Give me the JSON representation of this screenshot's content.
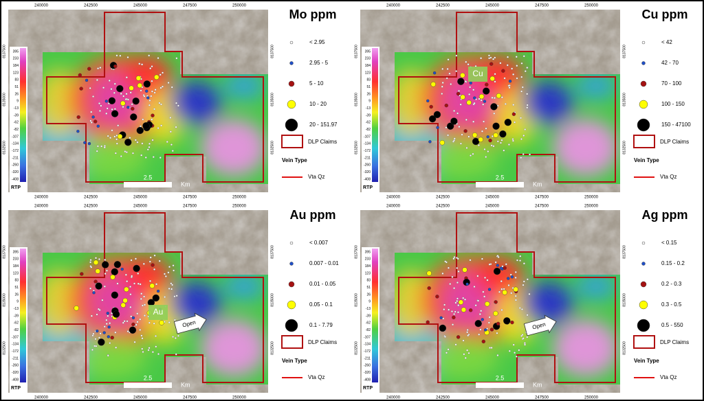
{
  "panels": [
    {
      "title": "Mo ppm",
      "x_ticks": [
        "240000",
        "242500",
        "245000",
        "247500",
        "250000"
      ],
      "y_ticks": [
        "8137500",
        "8135000",
        "8132500"
      ],
      "colorbar": {
        "title": "RTP",
        "labels": [
          "395",
          "233",
          "184",
          "123",
          "83",
          "51",
          "26",
          "9",
          "-13",
          "-39",
          "-62",
          "-82",
          "-107",
          "-134",
          "-172",
          "-211",
          "-260",
          "-320",
          "-408"
        ]
      },
      "scale_bar": [
        "2.5",
        "Km"
      ],
      "legend": {
        "items": [
          {
            "label": "< 2.95",
            "color": "#ffffff"
          },
          {
            "label": "2.95 - 5",
            "color": "#1f4fc8"
          },
          {
            "label": "5 - 10",
            "color": "#a51212"
          },
          {
            "label": "10 - 20",
            "color": "#ffff00"
          },
          {
            "label": "20 - 151.97",
            "color": "#000000"
          }
        ],
        "claims": "DLP Claims",
        "vein_heading": "Vein Type",
        "vein": "Vta Qz"
      },
      "annotations": []
    },
    {
      "title": "Cu ppm",
      "x_ticks": [
        "240000",
        "242500",
        "245000",
        "247500",
        "250000"
      ],
      "y_ticks": [
        "8137500",
        "8135000",
        "8132500"
      ],
      "colorbar": {
        "title": "RTP",
        "labels": [
          "395",
          "233",
          "184",
          "123",
          "83",
          "51",
          "26",
          "9",
          "-13",
          "-39",
          "-62",
          "-82",
          "-107",
          "-134",
          "-172",
          "-211",
          "-260",
          "-320",
          "-408"
        ]
      },
      "scale_bar": [
        "2.5",
        "Km"
      ],
      "legend": {
        "items": [
          {
            "label": "< 42",
            "color": "#ffffff"
          },
          {
            "label": "42 - 70",
            "color": "#1f4fc8"
          },
          {
            "label": "70 - 100",
            "color": "#a51212"
          },
          {
            "label": "100 - 150",
            "color": "#ffff00"
          },
          {
            "label": "150 - 47100",
            "color": "#000000"
          }
        ],
        "claims": "DLP Claims",
        "vein_heading": "Vein Type",
        "vein": "Vta Qz"
      },
      "annotations": [
        "Cu"
      ]
    },
    {
      "title": "Au ppm",
      "x_ticks": [
        "240000",
        "242500",
        "245000",
        "247500",
        "250000"
      ],
      "y_ticks": [
        "8137500",
        "8135000",
        "8132500"
      ],
      "colorbar": {
        "title": "RTP",
        "labels": [
          "395",
          "233",
          "184",
          "123",
          "83",
          "51",
          "26",
          "9",
          "-13",
          "-39",
          "-62",
          "-82",
          "-107",
          "-134",
          "-172",
          "-211",
          "-260",
          "-320",
          "-408"
        ]
      },
      "scale_bar": [
        "2.5",
        "Km"
      ],
      "legend": {
        "items": [
          {
            "label": "< 0.007",
            "color": "#ffffff"
          },
          {
            "label": "0.007 - 0.01",
            "color": "#1f4fc8"
          },
          {
            "label": "0.01 - 0.05",
            "color": "#a51212"
          },
          {
            "label": "0.05 - 0.1",
            "color": "#ffff00"
          },
          {
            "label": "0.1 -  7.79",
            "color": "#000000"
          }
        ],
        "claims": "DLP Claims",
        "vein_heading": "Vein Type",
        "vein": "Vta Qz"
      },
      "annotations": [
        "Au",
        "Open"
      ]
    },
    {
      "title": "Ag ppm",
      "x_ticks": [
        "240000",
        "242500",
        "245000",
        "247500",
        "250000"
      ],
      "y_ticks": [
        "8137500",
        "8135000",
        "8132500"
      ],
      "colorbar": {
        "title": "RTP",
        "labels": [
          "395",
          "233",
          "184",
          "123",
          "83",
          "51",
          "26",
          "9",
          "-13",
          "-39",
          "-62",
          "-82",
          "-107",
          "-134",
          "-172",
          "-211",
          "-260",
          "-320",
          "-408"
        ]
      },
      "scale_bar": [
        "2.5",
        "Km"
      ],
      "legend": {
        "items": [
          {
            "label": "< 0.15",
            "color": "#ffffff"
          },
          {
            "label": "0.15 - 0.2",
            "color": "#1f4fc8"
          },
          {
            "label": "0.2 - 0.3",
            "color": "#a51212"
          },
          {
            "label": "0.3 - 0.5",
            "color": "#ffff00"
          },
          {
            "label": "0.5 - 550",
            "color": "#000000"
          }
        ],
        "claims": "DLP Claims",
        "vein_heading": "Vein Type",
        "vein": "Vta Qz"
      },
      "annotations": [
        "Open"
      ]
    }
  ]
}
